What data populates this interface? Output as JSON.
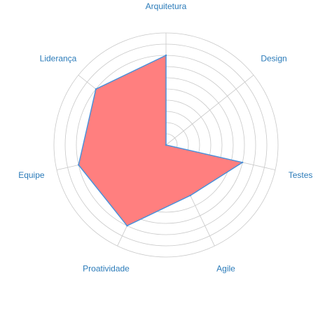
{
  "chart_data": {
    "type": "radar",
    "categories": [
      "Arquitetura",
      "Design",
      "Testes",
      "Agile",
      "Proatividade",
      "Equipe",
      "Liderança"
    ],
    "series": [
      {
        "values": [
          8,
          0,
          7,
          5,
          8,
          8,
          8
        ],
        "fill": "#ff7f7f",
        "stroke": "#4a90d9"
      }
    ],
    "rlim": [
      0,
      10
    ],
    "rings": 10,
    "grid": true,
    "label_color": "#2b7bb9",
    "grid_color": "#c8c8c8"
  }
}
